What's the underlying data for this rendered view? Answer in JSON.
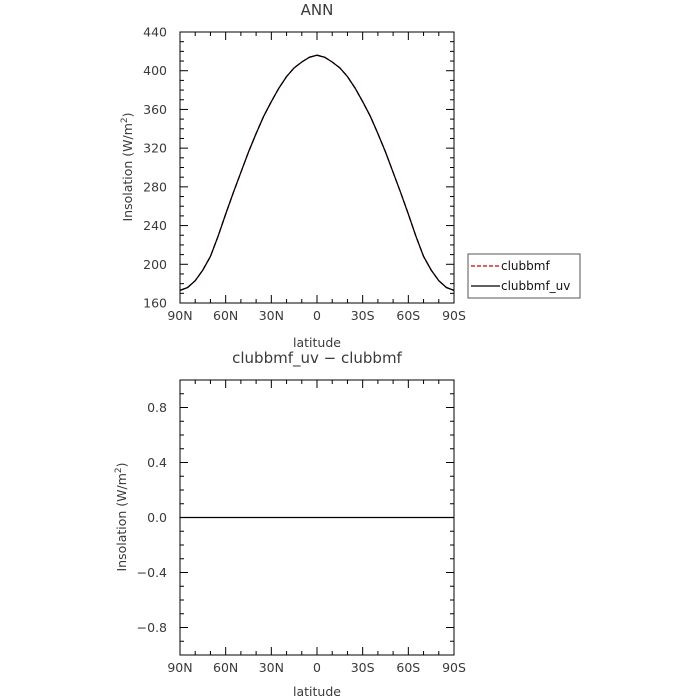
{
  "chart_data": [
    {
      "type": "line",
      "title": "ANN",
      "xlabel": "latitude",
      "ylabel": "Insolation (W/m",
      "ylabel_sup": "2",
      "ylabel_close": ")",
      "x_categories": [
        "90N",
        "60N",
        "30N",
        "0",
        "30S",
        "60S",
        "90S"
      ],
      "x_values": [
        90,
        60,
        30,
        0,
        -30,
        -60,
        -90
      ],
      "xlim": [
        90,
        -90
      ],
      "ylim": [
        160,
        440
      ],
      "yticks": [
        160,
        200,
        240,
        280,
        320,
        360,
        400,
        440
      ],
      "ytick_labels": [
        "160",
        "200",
        "240",
        "280",
        "320",
        "360",
        "400",
        "440"
      ],
      "x": [
        90,
        85,
        80,
        75,
        70,
        65,
        60,
        55,
        50,
        45,
        40,
        35,
        30,
        25,
        20,
        15,
        10,
        5,
        0,
        -5,
        -10,
        -15,
        -20,
        -25,
        -30,
        -35,
        -40,
        -45,
        -50,
        -55,
        -60,
        -65,
        -70,
        -75,
        -80,
        -85,
        -90
      ],
      "series": [
        {
          "name": "clubbmf",
          "color": "#cc0000",
          "dash": "dashed",
          "values": [
            173,
            176,
            183,
            194,
            208,
            229,
            252,
            274,
            295,
            316,
            335,
            353,
            368,
            382,
            394,
            403,
            409,
            414,
            416,
            414,
            409,
            403,
            394,
            382,
            368,
            353,
            335,
            316,
            295,
            274,
            252,
            229,
            208,
            194,
            183,
            176,
            173
          ]
        },
        {
          "name": "clubbmf_uv",
          "color": "#000000",
          "dash": "solid",
          "values": [
            173,
            176,
            183,
            194,
            208,
            229,
            252,
            274,
            295,
            316,
            335,
            353,
            368,
            382,
            394,
            403,
            409,
            414,
            416,
            414,
            409,
            403,
            394,
            382,
            368,
            353,
            335,
            316,
            295,
            274,
            252,
            229,
            208,
            194,
            183,
            176,
            173
          ]
        }
      ],
      "legend_position": "right"
    },
    {
      "type": "line",
      "title": "clubbmf_uv − clubbmf",
      "xlabel": "latitude",
      "ylabel": "Insolation (W/m",
      "ylabel_sup": "2",
      "ylabel_close": ")",
      "x_categories": [
        "90N",
        "60N",
        "30N",
        "0",
        "30S",
        "60S",
        "90S"
      ],
      "x_values": [
        90,
        60,
        30,
        0,
        -30,
        -60,
        -90
      ],
      "xlim": [
        90,
        -90
      ],
      "ylim": [
        -1.0,
        1.0
      ],
      "yticks": [
        -0.8,
        -0.4,
        0.0,
        0.4,
        0.8
      ],
      "ytick_labels": [
        "−0.8",
        "−0.4",
        "0.0",
        "0.4",
        "0.8"
      ],
      "x": [
        90,
        -90
      ],
      "series": [
        {
          "color": "#000000",
          "dash": "solid",
          "values": [
            0,
            0
          ]
        }
      ]
    }
  ]
}
